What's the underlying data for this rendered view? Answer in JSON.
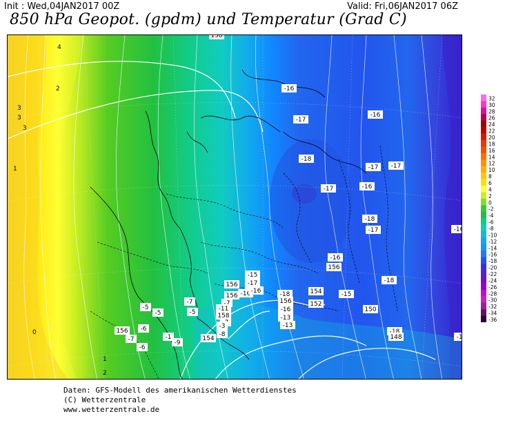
{
  "header": {
    "init": "Init : Wed,04JAN2017 00Z",
    "valid": "Valid: Fri,06JAN2017 06Z",
    "title": "850 hPa Geopot. (gpdm) und Temperatur (Grad C)"
  },
  "footer": {
    "line1": "Daten: GFS-Modell des amerikanischen Wetterdienstes",
    "line2": "(C) Wetterzentrale",
    "line3": "www.wetterzentrale.de"
  },
  "legend": {
    "levels": [
      "32",
      "30",
      "28",
      "26",
      "24",
      "22",
      "20",
      "18",
      "16",
      "14",
      "12",
      "10",
      "8",
      "6",
      "4",
      "2",
      "0",
      "-2",
      "-4",
      "-6",
      "-8",
      "-10",
      "-12",
      "-14",
      "-16",
      "-18",
      "-20",
      "-22",
      "-24",
      "-26",
      "-28",
      "-30",
      "-32",
      "-34",
      "-36"
    ],
    "colors": [
      "#ff66ff",
      "#ff33cc",
      "#dd1199",
      "#b8004f",
      "#a00000",
      "#c00000",
      "#d81800",
      "#e83800",
      "#f05000",
      "#f87000",
      "#ff9000",
      "#ffae00",
      "#ffc800",
      "#ffe000",
      "#ffff33",
      "#ccee22",
      "#88dd22",
      "#33cc33",
      "#22bb55",
      "#11cc88",
      "#11ccbb",
      "#11bbdd",
      "#11aaee",
      "#1199ff",
      "#2277ff",
      "#2255ee",
      "#3333dd",
      "#5522cc",
      "#7711bb",
      "#9900cc",
      "#bb11cc",
      "#cc22bb",
      "#992299",
      "#661166",
      "#330033"
    ]
  },
  "map_labels": {
    "temperature": [
      "4",
      "2",
      "3",
      "3",
      "3",
      "1",
      "0",
      "1",
      "2",
      "-16",
      "-17",
      "-16",
      "-18",
      "-17",
      "-17",
      "-17",
      "-16",
      "-18",
      "-17",
      "-16",
      "-18",
      "-16",
      "-15",
      "-17",
      "-16",
      "-18",
      "-15",
      "-16",
      "-5",
      "-5",
      "-7",
      "-6",
      "-7",
      "-6",
      "-1",
      "-9",
      "-5",
      "-7",
      "-7",
      "-11",
      "-3",
      "-8",
      "-13",
      "-16",
      "-13",
      "-17",
      "-16",
      "-18"
    ],
    "geopotential": [
      "156",
      "158",
      "156",
      "156",
      "154",
      "152",
      "156",
      "156",
      "158",
      "154",
      "148",
      "150",
      "156"
    ]
  }
}
